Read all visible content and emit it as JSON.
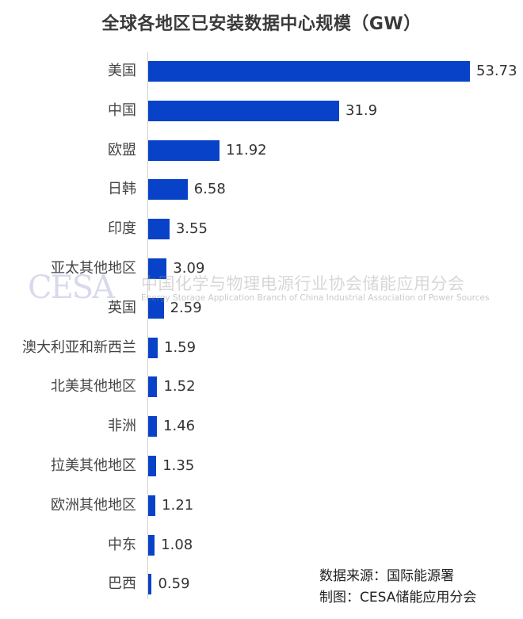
{
  "chart_data": {
    "type": "bar",
    "orientation": "horizontal",
    "title": "全球各地区已安装数据中心规模（GW）",
    "xlabel": "",
    "ylabel": "",
    "unit": "GW",
    "categories": [
      "美国",
      "中国",
      "欧盟",
      "日韩",
      "印度",
      "亚太其他地区",
      "英国",
      "澳大利亚和新西兰",
      "北美其他地区",
      "非洲",
      "拉美其他地区",
      "欧洲其他地区",
      "中东",
      "巴西"
    ],
    "values": [
      53.73,
      31.9,
      11.92,
      6.58,
      3.55,
      3.09,
      2.59,
      1.59,
      1.52,
      1.46,
      1.35,
      1.21,
      1.08,
      0.59
    ],
    "value_labels": [
      "53.73",
      "31.9",
      "11.92",
      "6.58",
      "3.55",
      "3.09",
      "2.59",
      "1.59",
      "1.52",
      "1.46",
      "1.35",
      "1.21",
      "1.08",
      "0.59"
    ],
    "bar_color": "#0842C8",
    "grid": false,
    "legend": null
  },
  "title": "全球各地区已安装数据中心规模（GW）",
  "watermark": {
    "logo": "CESA",
    "cn": "中国化学与物理电源行业协会储能应用分会",
    "en": "Energy Storage Application Branch of China Industrial Association of Power Sources"
  },
  "source": {
    "data_source": "数据来源：国际能源署",
    "made_by": "制图：CESA储能应用分会"
  }
}
